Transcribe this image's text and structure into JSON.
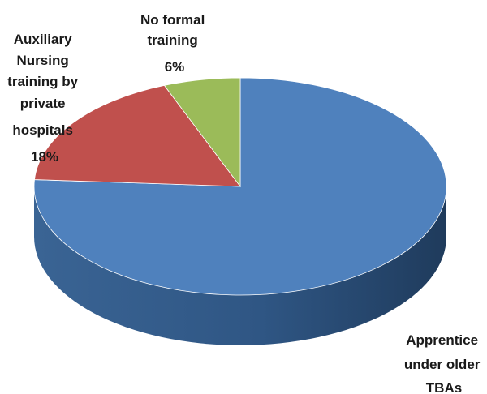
{
  "chart_data": {
    "type": "pie",
    "style": "3d",
    "slices": [
      {
        "label": "Apprentice under older TBAs",
        "label_lines": [
          "Apprentice",
          "under older",
          "TBAs"
        ],
        "percent_text": "",
        "value": 76,
        "color": "#4f81bd",
        "side_color": "#3a5f8c"
      },
      {
        "label": "Auxiliary Nursing training by private hospitals",
        "label_lines": [
          "Auxiliary",
          "Nursing",
          "training by",
          "private",
          "hospitals"
        ],
        "percent_text": "18%",
        "value": 18,
        "color": "#c0504d",
        "side_color": "#8e3a38"
      },
      {
        "label": "No formal training",
        "label_lines": [
          "No formal",
          "training"
        ],
        "percent_text": "6%",
        "value": 6,
        "color": "#9bbb59",
        "side_color": "#728a42"
      }
    ]
  }
}
